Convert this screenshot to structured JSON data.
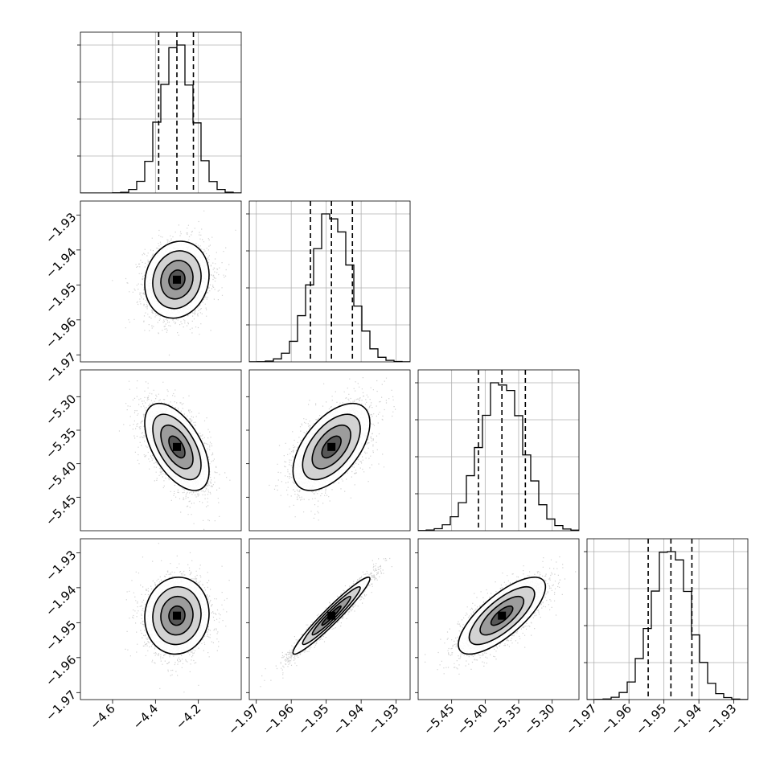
{
  "chart_data": {
    "type": "corner",
    "grid": true,
    "parameters": [
      {
        "range": [
          -4.75,
          -4.0
        ],
        "ticks": [
          "−4.6",
          "−4.4",
          "−4.2"
        ],
        "tick_values": [
          -4.6,
          -4.4,
          -4.2
        ],
        "mean": -4.3,
        "std": 0.075,
        "quantiles": [
          -4.385,
          -4.3,
          -4.223
        ]
      },
      {
        "range": [
          -1.972,
          -1.926
        ],
        "ticks": [
          "−1.97",
          "−1.96",
          "−1.95",
          "−1.94",
          "−1.93"
        ],
        "tick_values": [
          -1.97,
          -1.96,
          -1.95,
          -1.94,
          -1.93
        ],
        "mean": -1.9485,
        "std": 0.0055,
        "quantiles": [
          -1.9545,
          -1.9485,
          -1.9425
        ]
      },
      {
        "range": [
          -5.5,
          -5.26
        ],
        "ticks": [
          "−5.45",
          "−5.40",
          "−5.35",
          "−5.30"
        ],
        "tick_values": [
          -5.45,
          -5.4,
          -5.35,
          -5.3
        ],
        "y_ticks": [
          "−5.30",
          "−5.35",
          "−5.40",
          "−5.45"
        ],
        "y_tick_values": [
          -5.3,
          -5.35,
          -5.4,
          -5.45
        ],
        "mean": -5.375,
        "std": 0.0325,
        "quantiles": [
          -5.41,
          -5.375,
          -5.34
        ]
      },
      {
        "range": [
          -1.972,
          -1.926
        ],
        "ticks": [
          "−1.97",
          "−1.96",
          "−1.95",
          "−1.94",
          "−1.93"
        ],
        "tick_values": [
          -1.97,
          -1.96,
          -1.95,
          -1.94,
          -1.93
        ],
        "mean": -1.948,
        "std": 0.0055,
        "quantiles": [
          -1.9545,
          -1.948,
          -1.942
        ]
      }
    ],
    "correlations": [
      [
        1.0,
        0.12,
        -0.55,
        0.05
      ],
      [
        0.12,
        1.0,
        0.55,
        0.96
      ],
      [
        -0.55,
        0.55,
        1.0,
        0.75
      ],
      [
        0.05,
        0.96,
        0.75,
        1.0
      ]
    ],
    "contour_levels_sigma": [
      0.5,
      1.0,
      1.5,
      2.0
    ],
    "samples_per_panel": 2500
  }
}
